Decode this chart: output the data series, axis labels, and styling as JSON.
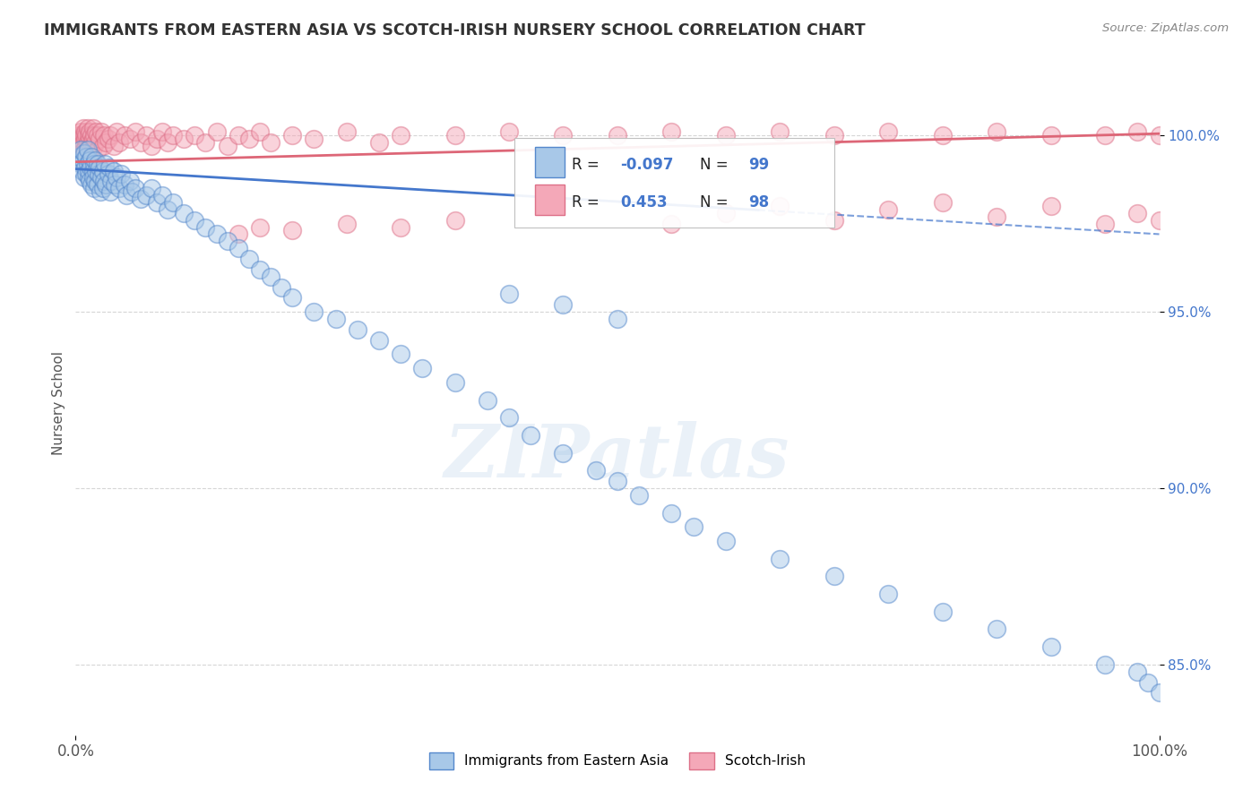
{
  "title": "IMMIGRANTS FROM EASTERN ASIA VS SCOTCH-IRISH NURSERY SCHOOL CORRELATION CHART",
  "source": "Source: ZipAtlas.com",
  "ylabel": "Nursery School",
  "xlim": [
    0.0,
    100.0
  ],
  "ylim": [
    83.0,
    101.8
  ],
  "yticks": [
    85.0,
    90.0,
    95.0,
    100.0
  ],
  "xtick_labels": [
    "0.0%",
    "100.0%"
  ],
  "ytick_labels": [
    "85.0%",
    "90.0%",
    "95.0%",
    "100.0%"
  ],
  "blue_color": "#a8c8e8",
  "pink_color": "#f4a8b8",
  "blue_edge_color": "#5588cc",
  "pink_edge_color": "#dd7088",
  "blue_line_color": "#4477cc",
  "pink_line_color": "#dd6677",
  "R_blue": -0.097,
  "N_blue": 99,
  "R_pink": 0.453,
  "N_pink": 98,
  "legend_label_blue": "Immigrants from Eastern Asia",
  "legend_label_pink": "Scotch-Irish",
  "blue_line_start_y": 99.05,
  "blue_line_end_y": 97.2,
  "blue_solid_end_x": 63,
  "pink_line_start_y": 99.25,
  "pink_line_end_y": 100.05,
  "blue_scatter_x": [
    0.3,
    0.5,
    0.5,
    0.6,
    0.7,
    0.8,
    0.8,
    0.9,
    1.0,
    1.0,
    1.1,
    1.1,
    1.2,
    1.2,
    1.3,
    1.3,
    1.4,
    1.5,
    1.5,
    1.6,
    1.6,
    1.7,
    1.7,
    1.8,
    1.8,
    1.9,
    2.0,
    2.0,
    2.1,
    2.2,
    2.3,
    2.4,
    2.5,
    2.5,
    2.6,
    2.7,
    2.8,
    3.0,
    3.1,
    3.2,
    3.3,
    3.5,
    3.6,
    3.8,
    4.0,
    4.2,
    4.5,
    4.7,
    5.0,
    5.2,
    5.5,
    6.0,
    6.5,
    7.0,
    7.5,
    8.0,
    8.5,
    9.0,
    10.0,
    11.0,
    12.0,
    13.0,
    14.0,
    15.0,
    16.0,
    17.0,
    18.0,
    19.0,
    20.0,
    22.0,
    24.0,
    26.0,
    28.0,
    30.0,
    32.0,
    35.0,
    38.0,
    40.0,
    42.0,
    45.0,
    48.0,
    50.0,
    52.0,
    55.0,
    57.0,
    60.0,
    65.0,
    70.0,
    75.0,
    80.0,
    85.0,
    90.0,
    95.0,
    98.0,
    99.0,
    100.0,
    40.0,
    45.0,
    50.0
  ],
  "blue_scatter_y": [
    99.4,
    99.2,
    99.6,
    99.0,
    99.3,
    99.5,
    98.8,
    99.1,
    99.4,
    98.9,
    99.2,
    99.6,
    98.8,
    99.0,
    99.3,
    98.7,
    99.1,
    99.4,
    98.6,
    99.0,
    98.8,
    99.2,
    98.5,
    99.3,
    98.7,
    99.0,
    99.2,
    98.6,
    98.9,
    99.1,
    98.4,
    98.8,
    99.0,
    98.5,
    98.7,
    99.2,
    98.6,
    98.9,
    99.1,
    98.4,
    98.7,
    99.0,
    98.6,
    98.8,
    98.5,
    98.9,
    98.6,
    98.3,
    98.7,
    98.4,
    98.5,
    98.2,
    98.3,
    98.5,
    98.1,
    98.3,
    97.9,
    98.1,
    97.8,
    97.6,
    97.4,
    97.2,
    97.0,
    96.8,
    96.5,
    96.2,
    96.0,
    95.7,
    95.4,
    95.0,
    94.8,
    94.5,
    94.2,
    93.8,
    93.4,
    93.0,
    92.5,
    92.0,
    91.5,
    91.0,
    90.5,
    90.2,
    89.8,
    89.3,
    88.9,
    88.5,
    88.0,
    87.5,
    87.0,
    86.5,
    86.0,
    85.5,
    85.0,
    84.8,
    84.5,
    84.2,
    95.5,
    95.2,
    94.8
  ],
  "pink_scatter_x": [
    0.2,
    0.3,
    0.4,
    0.5,
    0.5,
    0.6,
    0.6,
    0.7,
    0.7,
    0.8,
    0.8,
    0.9,
    0.9,
    1.0,
    1.0,
    1.1,
    1.1,
    1.2,
    1.2,
    1.3,
    1.3,
    1.4,
    1.5,
    1.5,
    1.6,
    1.6,
    1.7,
    1.7,
    1.8,
    1.9,
    2.0,
    2.0,
    2.2,
    2.4,
    2.5,
    2.6,
    2.8,
    3.0,
    3.2,
    3.5,
    3.8,
    4.0,
    4.5,
    5.0,
    5.5,
    6.0,
    6.5,
    7.0,
    7.5,
    8.0,
    8.5,
    9.0,
    10.0,
    11.0,
    12.0,
    13.0,
    14.0,
    15.0,
    16.0,
    17.0,
    18.0,
    20.0,
    22.0,
    25.0,
    28.0,
    30.0,
    35.0,
    40.0,
    45.0,
    50.0,
    55.0,
    60.0,
    65.0,
    70.0,
    75.0,
    80.0,
    85.0,
    90.0,
    95.0,
    98.0,
    100.0,
    55.0,
    60.0,
    65.0,
    70.0,
    75.0,
    80.0,
    85.0,
    90.0,
    95.0,
    98.0,
    100.0,
    15.0,
    17.0,
    20.0,
    25.0,
    30.0,
    35.0
  ],
  "pink_scatter_y": [
    100.0,
    99.8,
    100.0,
    99.9,
    100.1,
    99.7,
    100.0,
    99.8,
    100.2,
    99.6,
    100.0,
    99.9,
    100.1,
    99.7,
    100.0,
    99.8,
    100.2,
    99.6,
    100.0,
    99.9,
    100.1,
    99.7,
    100.0,
    99.8,
    100.2,
    99.9,
    99.7,
    100.0,
    99.8,
    100.1,
    99.6,
    100.0,
    99.9,
    100.1,
    99.7,
    100.0,
    99.8,
    99.9,
    100.0,
    99.7,
    100.1,
    99.8,
    100.0,
    99.9,
    100.1,
    99.8,
    100.0,
    99.7,
    99.9,
    100.1,
    99.8,
    100.0,
    99.9,
    100.0,
    99.8,
    100.1,
    99.7,
    100.0,
    99.9,
    100.1,
    99.8,
    100.0,
    99.9,
    100.1,
    99.8,
    100.0,
    100.0,
    100.1,
    100.0,
    100.0,
    100.1,
    100.0,
    100.1,
    100.0,
    100.1,
    100.0,
    100.1,
    100.0,
    100.0,
    100.1,
    100.0,
    97.5,
    97.8,
    98.0,
    97.6,
    97.9,
    98.1,
    97.7,
    98.0,
    97.5,
    97.8,
    97.6,
    97.2,
    97.4,
    97.3,
    97.5,
    97.4,
    97.6
  ],
  "watermark_text": "ZIPatlas",
  "grid_color": "#cccccc",
  "bg_color": "#ffffff",
  "title_color": "#333333",
  "source_color": "#888888",
  "ylabel_color": "#555555",
  "ytick_color": "#4477cc",
  "xtick_color": "#555555"
}
